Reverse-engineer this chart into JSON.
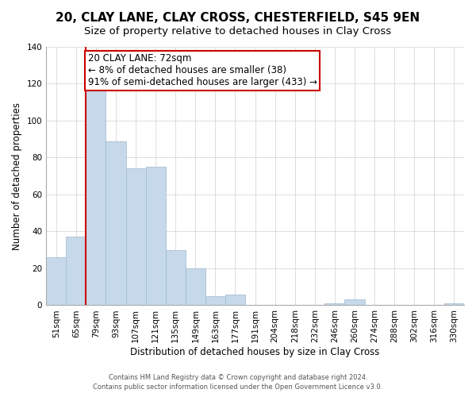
{
  "title": "20, CLAY LANE, CLAY CROSS, CHESTERFIELD, S45 9EN",
  "subtitle": "Size of property relative to detached houses in Clay Cross",
  "xlabel": "Distribution of detached houses by size in Clay Cross",
  "ylabel": "Number of detached properties",
  "footer_line1": "Contains HM Land Registry data © Crown copyright and database right 2024.",
  "footer_line2": "Contains public sector information licensed under the Open Government Licence v3.0.",
  "bar_labels": [
    "51sqm",
    "65sqm",
    "79sqm",
    "93sqm",
    "107sqm",
    "121sqm",
    "135sqm",
    "149sqm",
    "163sqm",
    "177sqm",
    "191sqm",
    "204sqm",
    "218sqm",
    "232sqm",
    "246sqm",
    "260sqm",
    "274sqm",
    "288sqm",
    "302sqm",
    "316sqm",
    "330sqm"
  ],
  "bar_values": [
    26,
    37,
    118,
    89,
    74,
    75,
    30,
    20,
    5,
    6,
    0,
    0,
    0,
    0,
    1,
    3,
    0,
    0,
    0,
    0,
    1
  ],
  "bar_color": "#c5d9ea",
  "vline_color": "#cc0000",
  "ylim": [
    0,
    140
  ],
  "yticks": [
    0,
    20,
    40,
    60,
    80,
    100,
    120,
    140
  ],
  "annotation_line1": "20 CLAY LANE: 72sqm",
  "annotation_line2": "← 8% of detached houses are smaller (38)",
  "annotation_line3": "91% of semi-detached houses are larger (433) →",
  "annotation_box_color": "#cc0000",
  "annotation_fill": "#ffffff",
  "title_fontsize": 11,
  "subtitle_fontsize": 10,
  "ylabel_fontsize": 8.5,
  "xlabel_fontsize": 8.5,
  "tick_fontsize": 7.5,
  "footer_fontsize": 6
}
